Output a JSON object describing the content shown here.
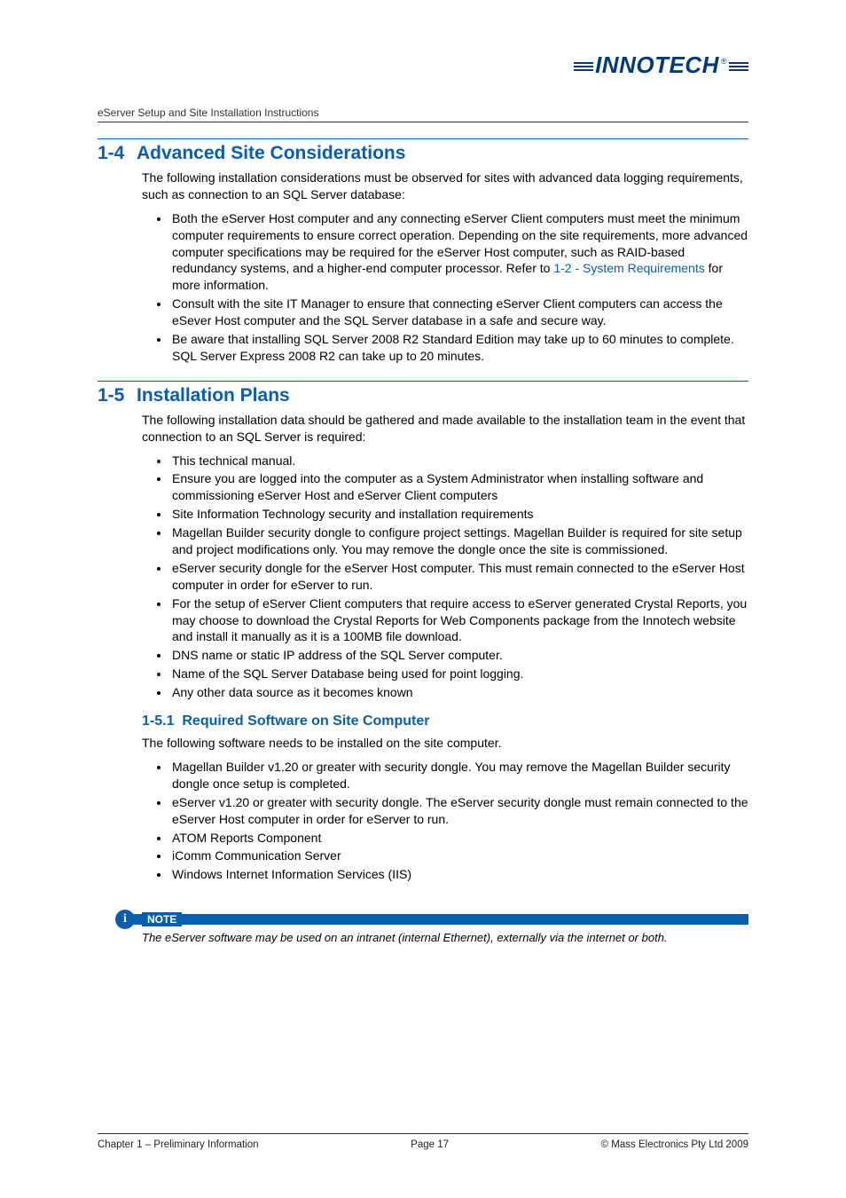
{
  "logo_text": "INNOTECH",
  "doc_title": "eServer Setup and Site Installation Instructions",
  "section_1_4": {
    "num": "1-4",
    "title": "Advanced Site Considerations",
    "intro": "The following installation considerations must be observed for sites with advanced data logging requirements, such as connection to an SQL Server database:",
    "bullets": [
      {
        "pre": "Both the eServer Host computer and any connecting eServer Client computers must meet the minimum computer requirements to ensure correct operation.  Depending on the site requirements, more advanced computer specifications may be required for the eServer Host computer, such as RAID-based redundancy systems, and a higher-end computer processor.  Refer to ",
        "link": "1-2 - System Requirements",
        "post": " for more information."
      },
      {
        "text": "Consult with the site IT Manager to ensure that connecting eServer Client computers can access the eSever Host computer and the SQL Server database in a safe and secure way."
      },
      {
        "text": "Be aware that installing SQL Server 2008 R2 Standard Edition may take up to 60 minutes to complete.  SQL Server Express 2008 R2 can take up to 20 minutes."
      }
    ]
  },
  "section_1_5": {
    "num": "1-5",
    "title": "Installation Plans",
    "intro": "The following installation data should be gathered and made available to the installation team in the event that connection to an SQL Server is required:",
    "bullets": [
      "This technical manual.",
      "Ensure you are logged into the computer as a System Administrator when installing software and commissioning eServer Host and eServer Client computers",
      "Site Information Technology security and installation requirements",
      "Magellan Builder security dongle to configure project settings.  Magellan Builder is required for site setup and project modifications only.  You may remove the dongle once the site is commissioned.",
      "eServer security dongle for the eServer Host computer.  This must remain connected to the eServer Host computer in order for eServer to run.",
      "For the setup of eServer Client computers that require access to eServer generated Crystal Reports, you may choose to download the Crystal Reports for Web Components package from the Innotech website and install it manually as it is a 100MB file download.",
      "DNS name or static IP address of the SQL Server computer.",
      "Name of the SQL Server Database being used for point logging.",
      "Any other data source as it becomes known"
    ]
  },
  "section_1_5_1": {
    "num": "1-5.1",
    "title": "Required Software on Site Computer",
    "intro": "The following software needs to be installed on the site computer.",
    "bullets": [
      "Magellan Builder v1.20 or greater with security dongle.  You may remove the Magellan Builder security dongle once setup is completed.",
      "eServer v1.20 or greater with security dongle.  The eServer security dongle must remain connected to the eServer Host computer in order for eServer to run.",
      "ATOM Reports Component",
      "iComm Communication Server",
      "Windows Internet Information Services (IIS)"
    ]
  },
  "note": {
    "label": "NOTE",
    "text": "The eServer software may be used on an intranet (internal Ethernet), externally via the internet or both."
  },
  "footer": {
    "left": "Chapter 1 – Preliminary Information",
    "center": "Page 17",
    "right": "© Mass Electronics Pty Ltd  2009"
  }
}
